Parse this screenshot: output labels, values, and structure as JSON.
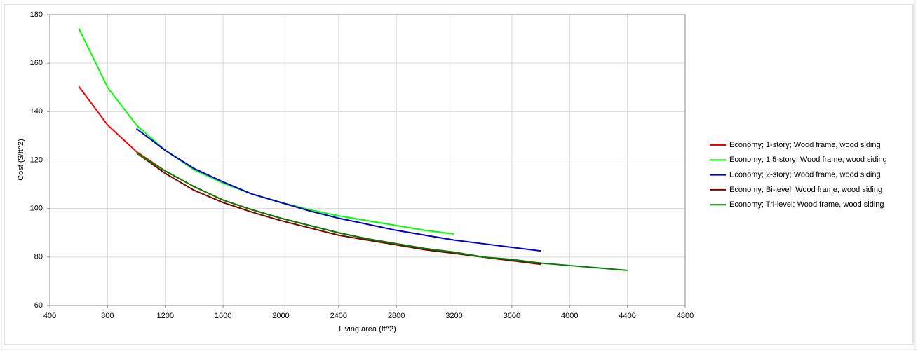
{
  "chart_data": {
    "type": "line",
    "xlabel": "Living  area  (ft^2)",
    "ylabel": "Cost  ($/ft^2)",
    "xlim": [
      400,
      4800
    ],
    "xticks": [
      400,
      800,
      1200,
      1600,
      2000,
      2400,
      2800,
      3200,
      3600,
      4000,
      4400,
      4800
    ],
    "ylim": [
      60,
      180
    ],
    "yticks": [
      60,
      80,
      100,
      120,
      140,
      160,
      180
    ],
    "grid": true,
    "legend": "right",
    "series": [
      {
        "name": "Economy; 1-story; Wood frame, wood siding",
        "color": "#ff0000",
        "x": [
          600,
          800,
          1000,
          1200,
          1400,
          1600,
          1800,
          2000,
          2200,
          2400,
          2600,
          2800,
          3000,
          3200,
          3400,
          3600,
          3800
        ],
        "values": [
          150.5,
          134.5,
          123.5,
          115.5,
          109,
          103.5,
          99.5,
          96,
          93,
          90,
          87.5,
          85.5,
          83.5,
          82,
          80,
          78.5,
          77.5
        ]
      },
      {
        "name": "Economy; 1.5-story; Wood frame, wood siding",
        "color": "#00ff00",
        "x": [
          600,
          800,
          1000,
          1200,
          1400,
          1600,
          1800,
          2000,
          2200,
          2400,
          2600,
          2800,
          3000,
          3200
        ],
        "values": [
          174.5,
          150,
          134.5,
          124,
          116,
          110.5,
          106,
          102.5,
          99.5,
          97,
          95,
          93,
          91,
          89.5
        ]
      },
      {
        "name": "Economy; 2-story; Wood frame, wood siding",
        "color": "#0000cc",
        "x": [
          1000,
          1200,
          1400,
          1600,
          1800,
          2000,
          2200,
          2400,
          2600,
          2800,
          3000,
          3200,
          3400,
          3600,
          3800
        ],
        "values": [
          133,
          124,
          116.5,
          111,
          106,
          102.5,
          99,
          96,
          93.5,
          91,
          89,
          87,
          85.5,
          84,
          82.5
        ]
      },
      {
        "name": "Economy; Bi-level; Wood frame, wood siding",
        "color": "#800000",
        "x": [
          1000,
          1200,
          1400,
          1600,
          1800,
          2000,
          2200,
          2400,
          2600,
          2800,
          3000,
          3200,
          3400,
          3600,
          3800
        ],
        "values": [
          123,
          114.5,
          107.5,
          102.5,
          98.5,
          95,
          92,
          89,
          87,
          85,
          83,
          81.5,
          80,
          78.5,
          77
        ]
      },
      {
        "name": "Economy; Tri-level; Wood frame, wood siding",
        "color": "#008000",
        "x": [
          1000,
          1200,
          1400,
          1600,
          1800,
          2000,
          2200,
          2400,
          2600,
          2800,
          3000,
          3200,
          3400,
          3600,
          3800,
          4000,
          4200,
          4400
        ],
        "values": [
          123,
          115.5,
          109,
          103.5,
          99.5,
          96,
          93,
          90,
          87.5,
          85.5,
          83.5,
          82,
          80,
          79,
          77.5,
          76.5,
          75.5,
          74.5
        ]
      }
    ]
  }
}
